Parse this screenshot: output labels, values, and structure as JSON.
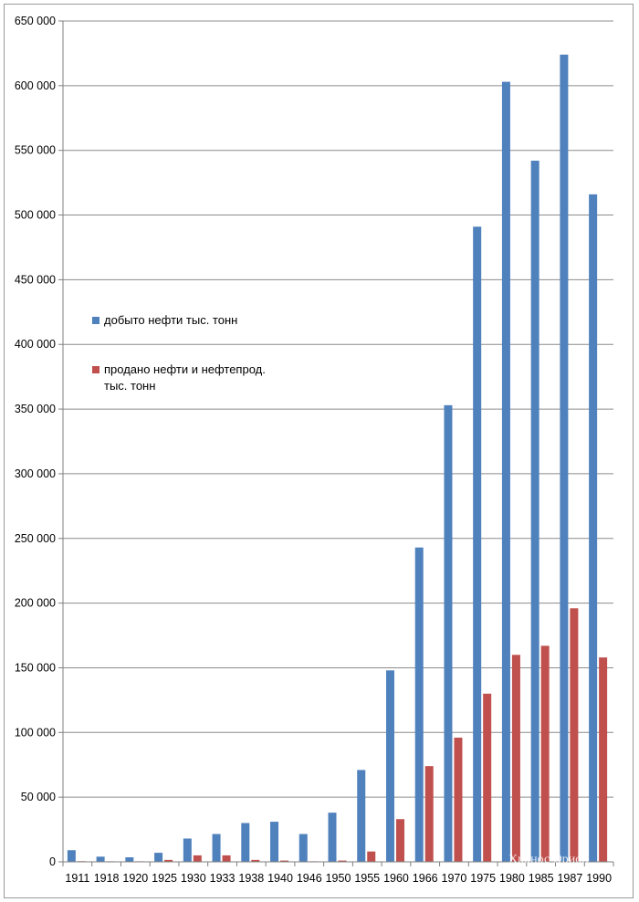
{
  "chart_data": {
    "type": "bar",
    "title": "",
    "xlabel": "",
    "ylabel": "",
    "ylim": [
      0,
      650000
    ],
    "grid": true,
    "legend_position": "left-middle",
    "categories": [
      "1911",
      "1918",
      "1920",
      "1925",
      "1930",
      "1933",
      "1938",
      "1940",
      "1946",
      "1950",
      "1955",
      "1960",
      "1966",
      "1970",
      "1975",
      "1980",
      "1985",
      "1987",
      "1990"
    ],
    "y_tick_values": [
      0,
      50000,
      100000,
      150000,
      200000,
      250000,
      300000,
      350000,
      400000,
      450000,
      500000,
      550000,
      600000,
      650000
    ],
    "y_tick_labels": [
      "0",
      "50 000",
      "100 000",
      "150 000",
      "200 000",
      "250 000",
      "300 000",
      "350 000",
      "400 000",
      "450 000",
      "500 000",
      "550 000",
      "600 000",
      "650 000"
    ],
    "series": [
      {
        "name": "добыто нефти тыс. тонн",
        "color": "#4f81bd",
        "values": [
          9000,
          4000,
          3500,
          7000,
          18000,
          21500,
          30000,
          31000,
          21500,
          38000,
          71000,
          148000,
          243000,
          353000,
          491000,
          603000,
          542000,
          624000,
          516000
        ]
      },
      {
        "name": "продано нефти и нефтепрод. тыс. тонн",
        "legend_lines": [
          "продано нефти и нефтепрод.",
          "тыс. тонн"
        ],
        "color": "#c0504d",
        "values": [
          500,
          200,
          200,
          1500,
          5000,
          5000,
          1500,
          1000,
          300,
          1000,
          8000,
          33000,
          74000,
          96000,
          130000,
          160000,
          167000,
          196000,
          158000
        ]
      }
    ]
  },
  "watermark": "Хронос Орион"
}
